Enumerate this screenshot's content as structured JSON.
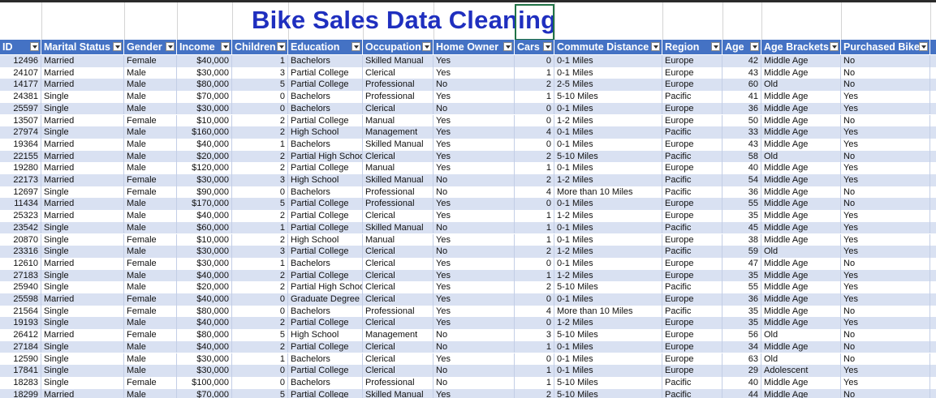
{
  "sheet_title": "Bike Sales Data Cleaning",
  "columns": [
    {
      "key": "id",
      "label": "ID"
    },
    {
      "key": "marital",
      "label": "Marital Status"
    },
    {
      "key": "gender",
      "label": "Gender"
    },
    {
      "key": "income",
      "label": "Income"
    },
    {
      "key": "children",
      "label": "Children"
    },
    {
      "key": "education",
      "label": "Education"
    },
    {
      "key": "occupation",
      "label": "Occupation"
    },
    {
      "key": "home_owner",
      "label": "Home Owner"
    },
    {
      "key": "cars",
      "label": "Cars"
    },
    {
      "key": "commute",
      "label": "Commute Distance"
    },
    {
      "key": "region",
      "label": "Region"
    },
    {
      "key": "age",
      "label": "Age"
    },
    {
      "key": "age_bracket",
      "label": "Age Brackets"
    },
    {
      "key": "purchased",
      "label": "Purchased Bike"
    }
  ],
  "rows": [
    [
      "12496",
      "Married",
      "Female",
      "$40,000",
      "1",
      "Bachelors",
      "Skilled Manual",
      "Yes",
      "0",
      "0-1 Miles",
      "Europe",
      "42",
      "Middle Age",
      "No"
    ],
    [
      "24107",
      "Married",
      "Male",
      "$30,000",
      "3",
      "Partial College",
      "Clerical",
      "Yes",
      "1",
      "0-1 Miles",
      "Europe",
      "43",
      "Middle Age",
      "No"
    ],
    [
      "14177",
      "Married",
      "Male",
      "$80,000",
      "5",
      "Partial College",
      "Professional",
      "No",
      "2",
      "2-5 Miles",
      "Europe",
      "60",
      "Old",
      "No"
    ],
    [
      "24381",
      "Single",
      "Male",
      "$70,000",
      "0",
      "Bachelors",
      "Professional",
      "Yes",
      "1",
      "5-10 Miles",
      "Pacific",
      "41",
      "Middle Age",
      "Yes"
    ],
    [
      "25597",
      "Single",
      "Male",
      "$30,000",
      "0",
      "Bachelors",
      "Clerical",
      "No",
      "0",
      "0-1 Miles",
      "Europe",
      "36",
      "Middle Age",
      "Yes"
    ],
    [
      "13507",
      "Married",
      "Female",
      "$10,000",
      "2",
      "Partial College",
      "Manual",
      "Yes",
      "0",
      "1-2 Miles",
      "Europe",
      "50",
      "Middle Age",
      "No"
    ],
    [
      "27974",
      "Single",
      "Male",
      "$160,000",
      "2",
      "High School",
      "Management",
      "Yes",
      "4",
      "0-1 Miles",
      "Pacific",
      "33",
      "Middle Age",
      "Yes"
    ],
    [
      "19364",
      "Married",
      "Male",
      "$40,000",
      "1",
      "Bachelors",
      "Skilled Manual",
      "Yes",
      "0",
      "0-1 Miles",
      "Europe",
      "43",
      "Middle Age",
      "Yes"
    ],
    [
      "22155",
      "Married",
      "Male",
      "$20,000",
      "2",
      "Partial High School",
      "Clerical",
      "Yes",
      "2",
      "5-10 Miles",
      "Pacific",
      "58",
      "Old",
      "No"
    ],
    [
      "19280",
      "Married",
      "Male",
      "$120,000",
      "2",
      "Partial College",
      "Manual",
      "Yes",
      "1",
      "0-1 Miles",
      "Europe",
      "40",
      "Middle Age",
      "Yes"
    ],
    [
      "22173",
      "Married",
      "Female",
      "$30,000",
      "3",
      "High School",
      "Skilled Manual",
      "No",
      "2",
      "1-2 Miles",
      "Pacific",
      "54",
      "Middle Age",
      "Yes"
    ],
    [
      "12697",
      "Single",
      "Female",
      "$90,000",
      "0",
      "Bachelors",
      "Professional",
      "No",
      "4",
      "More than 10 Miles",
      "Pacific",
      "36",
      "Middle Age",
      "No"
    ],
    [
      "11434",
      "Married",
      "Male",
      "$170,000",
      "5",
      "Partial College",
      "Professional",
      "Yes",
      "0",
      "0-1 Miles",
      "Europe",
      "55",
      "Middle Age",
      "No"
    ],
    [
      "25323",
      "Married",
      "Male",
      "$40,000",
      "2",
      "Partial College",
      "Clerical",
      "Yes",
      "1",
      "1-2 Miles",
      "Europe",
      "35",
      "Middle Age",
      "Yes"
    ],
    [
      "23542",
      "Single",
      "Male",
      "$60,000",
      "1",
      "Partial College",
      "Skilled Manual",
      "No",
      "1",
      "0-1 Miles",
      "Pacific",
      "45",
      "Middle Age",
      "Yes"
    ],
    [
      "20870",
      "Single",
      "Female",
      "$10,000",
      "2",
      "High School",
      "Manual",
      "Yes",
      "1",
      "0-1 Miles",
      "Europe",
      "38",
      "Middle Age",
      "Yes"
    ],
    [
      "23316",
      "Single",
      "Male",
      "$30,000",
      "3",
      "Partial College",
      "Clerical",
      "No",
      "2",
      "1-2 Miles",
      "Pacific",
      "59",
      "Old",
      "Yes"
    ],
    [
      "12610",
      "Married",
      "Female",
      "$30,000",
      "1",
      "Bachelors",
      "Clerical",
      "Yes",
      "0",
      "0-1 Miles",
      "Europe",
      "47",
      "Middle Age",
      "No"
    ],
    [
      "27183",
      "Single",
      "Male",
      "$40,000",
      "2",
      "Partial College",
      "Clerical",
      "Yes",
      "1",
      "1-2 Miles",
      "Europe",
      "35",
      "Middle Age",
      "Yes"
    ],
    [
      "25940",
      "Single",
      "Male",
      "$20,000",
      "2",
      "Partial High School",
      "Clerical",
      "Yes",
      "2",
      "5-10 Miles",
      "Pacific",
      "55",
      "Middle Age",
      "Yes"
    ],
    [
      "25598",
      "Married",
      "Female",
      "$40,000",
      "0",
      "Graduate Degree",
      "Clerical",
      "Yes",
      "0",
      "0-1 Miles",
      "Europe",
      "36",
      "Middle Age",
      "Yes"
    ],
    [
      "21564",
      "Single",
      "Female",
      "$80,000",
      "0",
      "Bachelors",
      "Professional",
      "Yes",
      "4",
      "More than 10 Miles",
      "Pacific",
      "35",
      "Middle Age",
      "No"
    ],
    [
      "19193",
      "Single",
      "Male",
      "$40,000",
      "2",
      "Partial College",
      "Clerical",
      "Yes",
      "0",
      "1-2 Miles",
      "Europe",
      "35",
      "Middle Age",
      "Yes"
    ],
    [
      "26412",
      "Married",
      "Female",
      "$80,000",
      "5",
      "High School",
      "Management",
      "No",
      "3",
      "5-10 Miles",
      "Europe",
      "56",
      "Old",
      "No"
    ],
    [
      "27184",
      "Single",
      "Male",
      "$40,000",
      "2",
      "Partial College",
      "Clerical",
      "No",
      "1",
      "0-1 Miles",
      "Europe",
      "34",
      "Middle Age",
      "No"
    ],
    [
      "12590",
      "Single",
      "Male",
      "$30,000",
      "1",
      "Bachelors",
      "Clerical",
      "Yes",
      "0",
      "0-1 Miles",
      "Europe",
      "63",
      "Old",
      "No"
    ],
    [
      "17841",
      "Single",
      "Male",
      "$30,000",
      "0",
      "Partial College",
      "Clerical",
      "No",
      "1",
      "0-1 Miles",
      "Europe",
      "29",
      "Adolescent",
      "Yes"
    ],
    [
      "18283",
      "Single",
      "Female",
      "$100,000",
      "0",
      "Bachelors",
      "Professional",
      "No",
      "1",
      "5-10 Miles",
      "Pacific",
      "40",
      "Middle Age",
      "Yes"
    ],
    [
      "18299",
      "Married",
      "Male",
      "$70,000",
      "5",
      "Partial College",
      "Skilled Manual",
      "Yes",
      "2",
      "5-10 Miles",
      "Pacific",
      "44",
      "Middle Age",
      "No"
    ]
  ],
  "colors": {
    "header_bg": "#4472c4",
    "band_bg": "#d9e1f2",
    "title_color": "#1f2fbf",
    "selection_border": "#217346"
  }
}
